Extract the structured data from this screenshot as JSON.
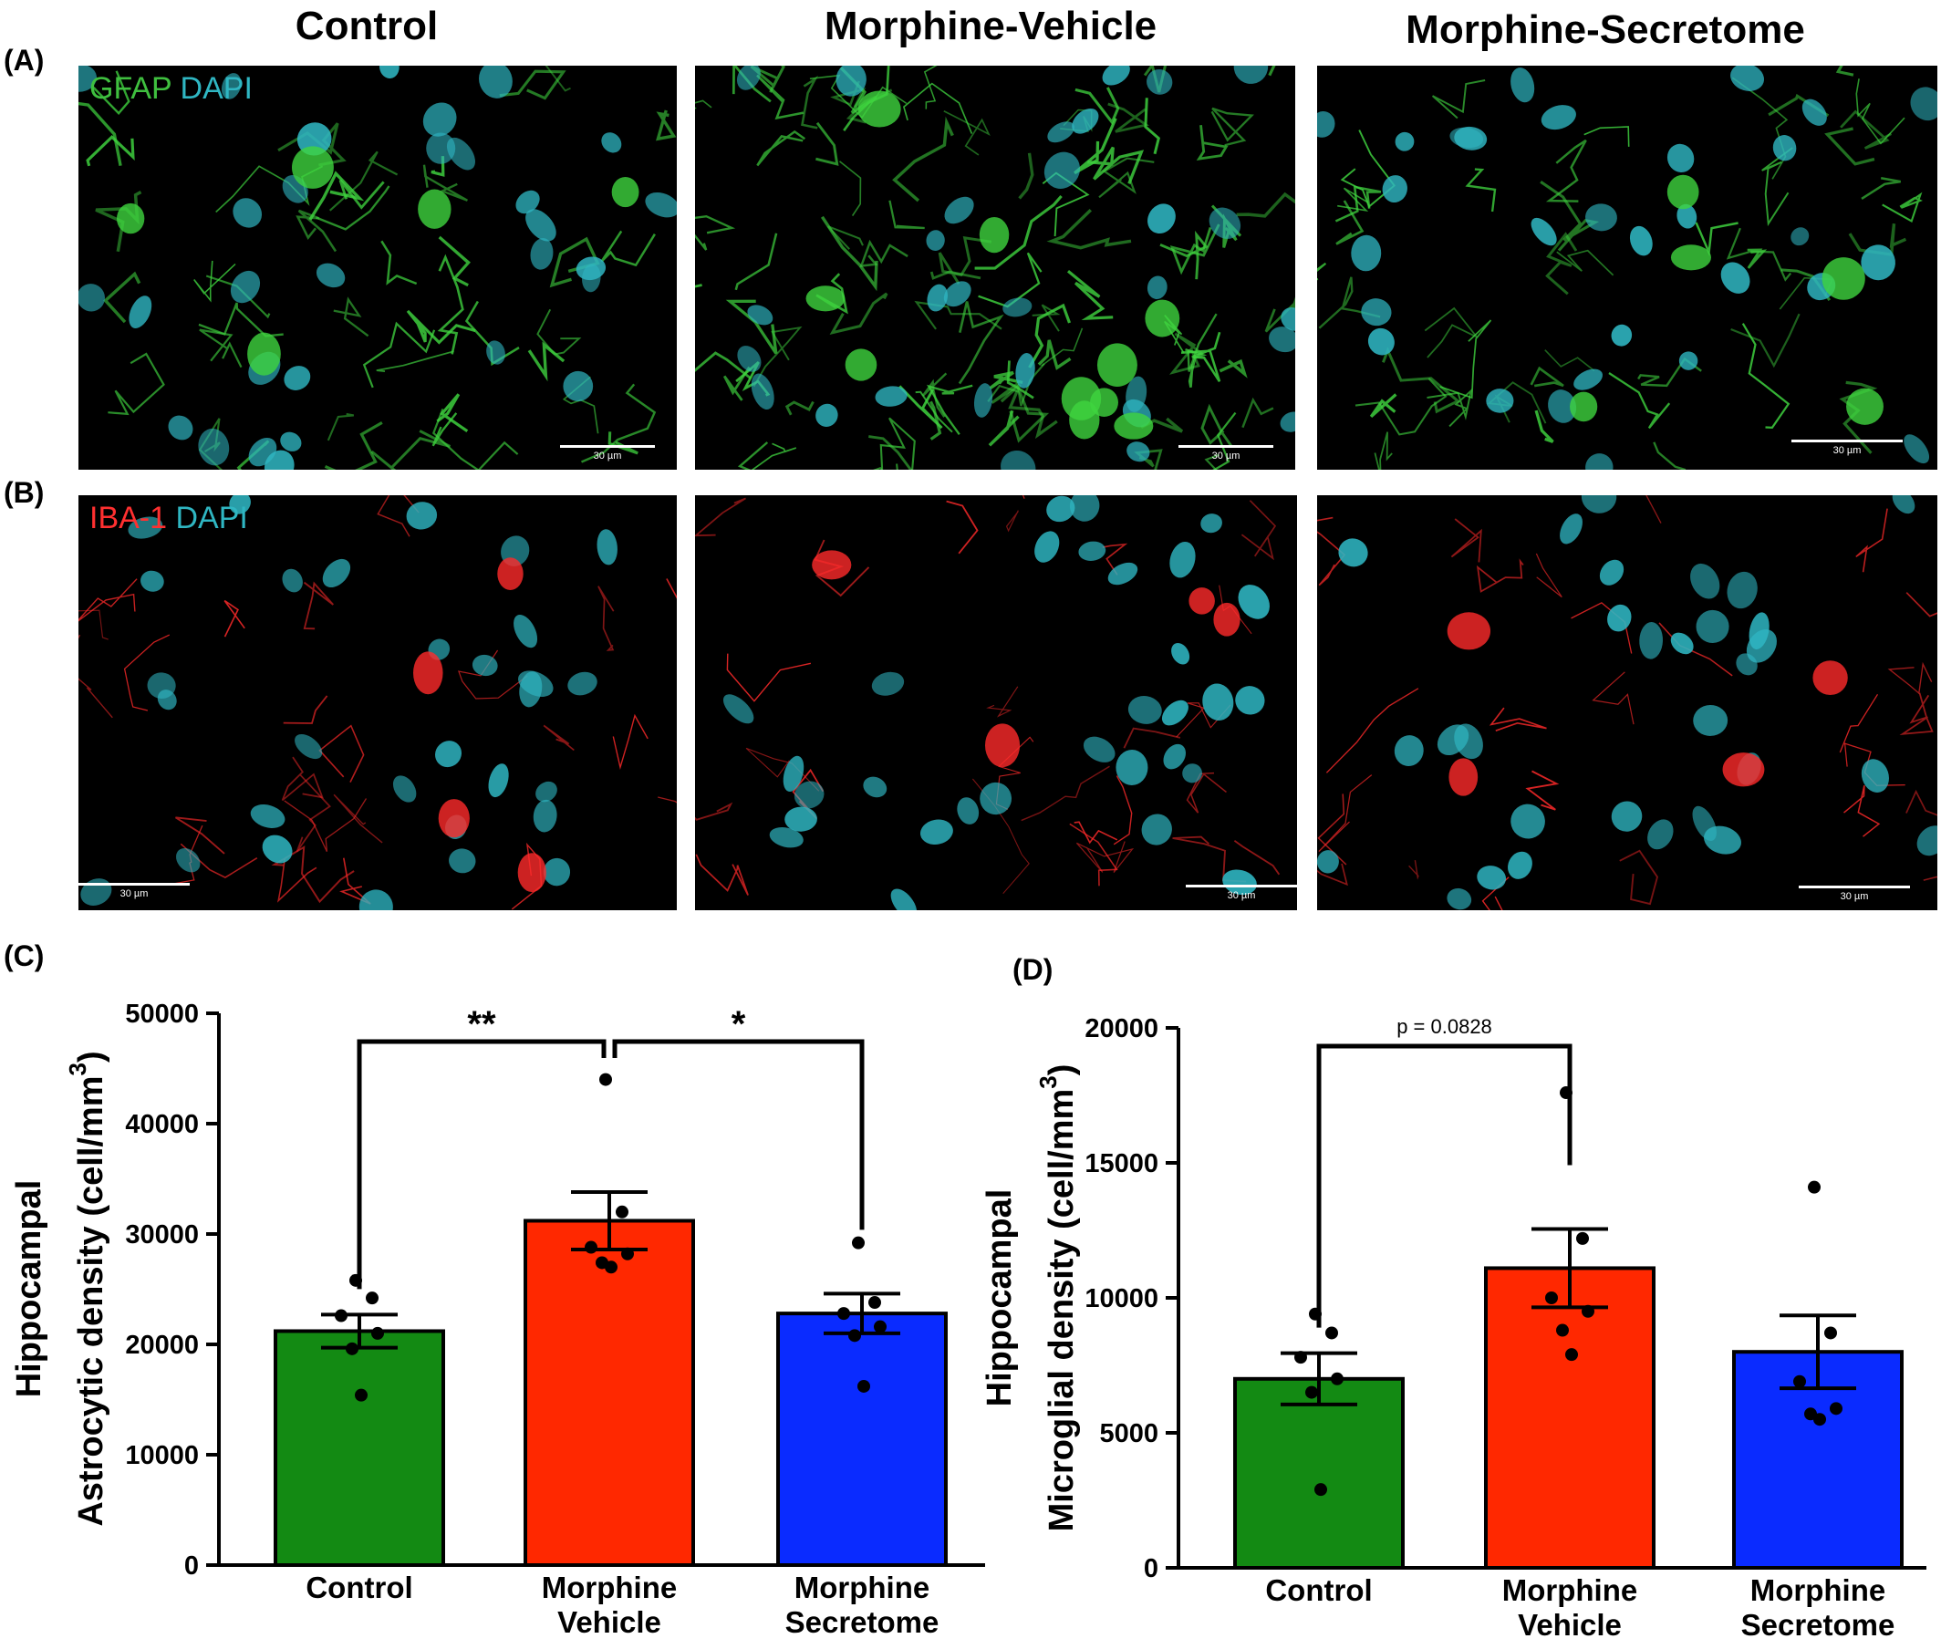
{
  "column_titles": [
    "Control",
    "Morphine-Vehicle",
    "Morphine-Secretome"
  ],
  "panels": {
    "A": {
      "letter": "(A)",
      "stain_primary": "GFAP",
      "stain_secondary": "DAPI",
      "primary_color": "#3fd43f",
      "nucleus_color": "#2fb6c2",
      "scale_label": "30 µm"
    },
    "B": {
      "letter": "(B)",
      "stain_primary": "IBA-1",
      "stain_secondary": "DAPI",
      "primary_color": "#ff2a2a",
      "nucleus_color": "#2fb6c2",
      "scale_label": "30 µm"
    },
    "C": {
      "letter": "(C)"
    },
    "D": {
      "letter": "(D)"
    }
  },
  "chart_data": [
    {
      "type": "bar",
      "panel": "C",
      "ylabel_line1": "Hippocampal",
      "ylabel_line2": "Astrocytic density (cell/mm",
      "ylabel_sup": "3",
      "ylabel_close": ")",
      "ylim": [
        0,
        50000
      ],
      "yticks": [
        0,
        10000,
        20000,
        30000,
        40000,
        50000
      ],
      "categories": [
        [
          "Control"
        ],
        [
          "Morphine",
          "Vehicle"
        ],
        [
          "Morphine",
          "Secretome"
        ]
      ],
      "colors": [
        "#138a13",
        "#ff2800",
        "#0a2bff"
      ],
      "values": [
        21200,
        31200,
        22800
      ],
      "sem": [
        1500,
        2600,
        1800
      ],
      "points": [
        [
          25800,
          24200,
          22600,
          21000,
          19600,
          15400
        ],
        [
          44000,
          32000,
          28800,
          28200,
          27400,
          27000
        ],
        [
          29200,
          23800,
          22800,
          21600,
          20800,
          16200
        ]
      ],
      "brackets": [
        {
          "from": 0,
          "to": 1,
          "label": "**"
        },
        {
          "from": 1,
          "to": 2,
          "label": "*"
        }
      ]
    },
    {
      "type": "bar",
      "panel": "D",
      "ylabel_line1": "Hippocampal",
      "ylabel_line2": "Microglial density (cell/mm",
      "ylabel_sup": "3",
      "ylabel_close": ")",
      "ylim": [
        0,
        20000
      ],
      "yticks": [
        0,
        5000,
        10000,
        15000,
        20000
      ],
      "categories": [
        [
          "Control"
        ],
        [
          "Morphine",
          "Vehicle"
        ],
        [
          "Morphine",
          "Secretome"
        ]
      ],
      "colors": [
        "#138a13",
        "#ff2800",
        "#0a2bff"
      ],
      "values": [
        7000,
        11100,
        8000
      ],
      "sem": [
        950,
        1450,
        1350
      ],
      "points": [
        [
          9400,
          8700,
          7800,
          7000,
          6500,
          2900
        ],
        [
          17600,
          12200,
          10000,
          9500,
          8800,
          7900
        ],
        [
          14100,
          8700,
          6900,
          5900,
          5700,
          5500
        ]
      ],
      "brackets": [
        {
          "from": 0,
          "to": 1,
          "label": "p = 0.0828"
        }
      ]
    }
  ]
}
